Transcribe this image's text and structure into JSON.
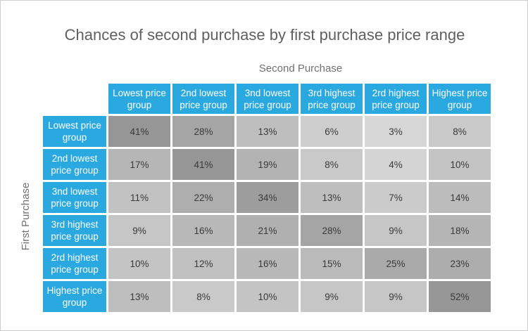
{
  "chart_data": {
    "type": "heatmap",
    "title": "Chances of second purchase by first purchase price range",
    "xlabel": "Second Purchase",
    "ylabel": "First Purchase",
    "columns": [
      "Lowest price group",
      "2nd lowest price group",
      "3nd lowest price group",
      "3rd highest price group",
      "2rd highest price group",
      "Highest price group"
    ],
    "rows": [
      "Lowest price group",
      "2nd lowest price group",
      "3nd lowest price group",
      "3rd highest price group",
      "2rd highest price group",
      "Highest price group"
    ],
    "values": [
      [
        41,
        28,
        13,
        6,
        3,
        8
      ],
      [
        17,
        41,
        19,
        8,
        4,
        10
      ],
      [
        11,
        22,
        34,
        13,
        7,
        14
      ],
      [
        9,
        16,
        21,
        28,
        9,
        18
      ],
      [
        10,
        12,
        16,
        15,
        25,
        23
      ],
      [
        13,
        8,
        10,
        9,
        9,
        52
      ]
    ],
    "value_suffix": "%",
    "header_color": "#2aa8e0"
  }
}
